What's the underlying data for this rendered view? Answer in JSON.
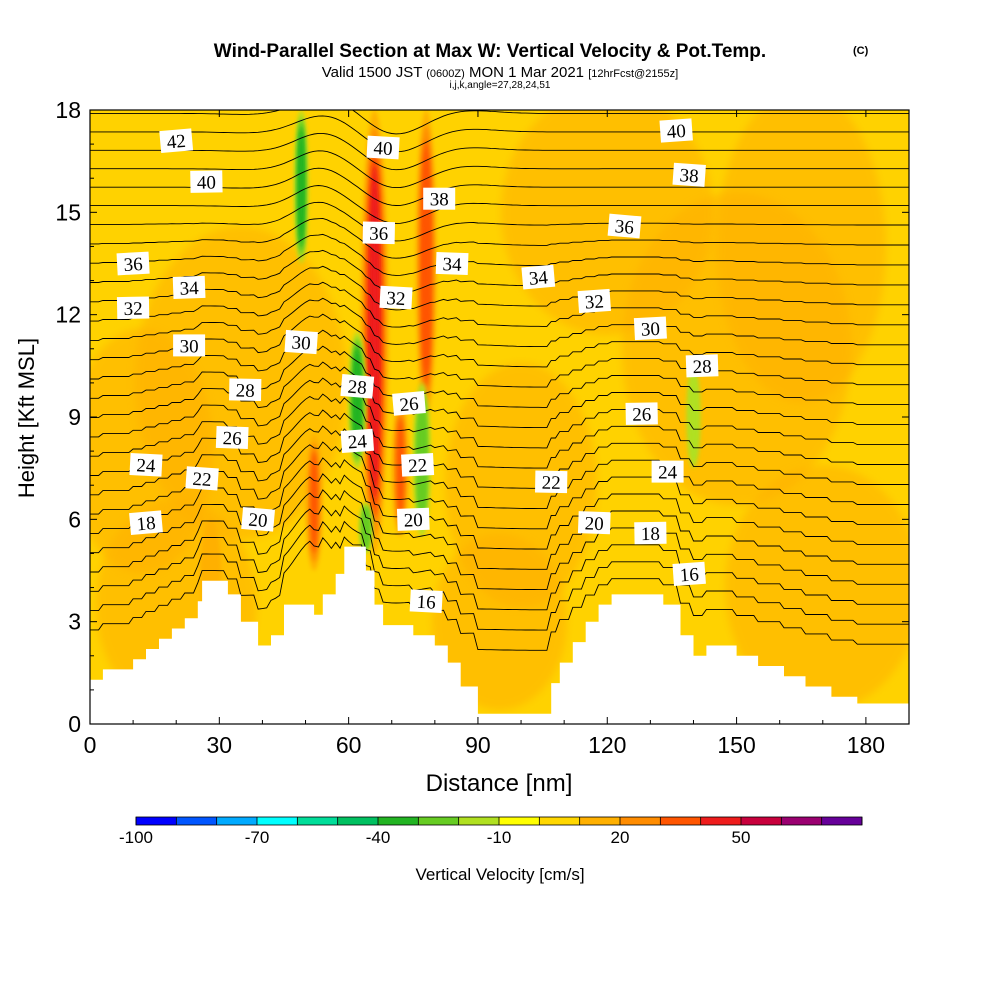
{
  "header": {
    "title": "Wind-Parallel Section at Max W: Vertical Velocity & Pot.Temp.",
    "copyright": "(C)",
    "valid_prefix": "Valid 1500 JST",
    "utc_time": "(0600Z)",
    "valid_date": "MON 1 Mar 2021",
    "forecast_tag": "[12hrFcst@2155z]",
    "indices": "i,j,k,angle=27,28,24,51"
  },
  "colors": {
    "bands": [
      "#0000ff",
      "#0055ff",
      "#00aaff",
      "#00ffff",
      "#00dd99",
      "#00c060",
      "#22b422",
      "#66cc22",
      "#b0e020",
      "#ffff00",
      "#ffd700",
      "#ffb000",
      "#ff8c00",
      "#ff5500",
      "#ee1c1c",
      "#c8003c",
      "#9a0070",
      "#660099"
    ],
    "field_background": "#ffd200",
    "field_warm": "#ffb000",
    "terrain": "#ffffff",
    "contour": "#000000"
  },
  "chart_data": {
    "type": "heatmap",
    "xlabel": "Distance [nm]",
    "ylabel": "Height [Kft MSL]",
    "xlim": [
      0,
      190
    ],
    "ylim": [
      0,
      18
    ],
    "xticks": [
      0,
      30,
      60,
      90,
      120,
      150,
      180
    ],
    "yticks": [
      0,
      3,
      6,
      9,
      12,
      15,
      18
    ],
    "colorbar": {
      "label": "Vertical Velocity [cm/s]",
      "range": [
        -100,
        80
      ],
      "step": 10,
      "tick_values": [
        -100,
        -70,
        -40,
        -10,
        20,
        50
      ],
      "tick_labels": [
        "-100",
        "-70",
        "-40",
        "-10",
        "20",
        "50"
      ]
    },
    "terrain": [
      [
        0,
        1.3
      ],
      [
        3,
        1.3
      ],
      [
        3,
        1.6
      ],
      [
        10,
        1.6
      ],
      [
        10,
        1.9
      ],
      [
        13,
        1.9
      ],
      [
        13,
        2.2
      ],
      [
        16,
        2.2
      ],
      [
        16,
        2.5
      ],
      [
        19,
        2.5
      ],
      [
        19,
        2.8
      ],
      [
        22,
        2.8
      ],
      [
        22,
        3.1
      ],
      [
        25,
        3.1
      ],
      [
        25,
        3.6
      ],
      [
        26,
        3.6
      ],
      [
        26,
        4.2
      ],
      [
        32,
        4.2
      ],
      [
        32,
        3.8
      ],
      [
        35,
        3.8
      ],
      [
        35,
        3.0
      ],
      [
        39,
        3.0
      ],
      [
        39,
        2.3
      ],
      [
        42,
        2.3
      ],
      [
        42,
        2.6
      ],
      [
        45,
        2.6
      ],
      [
        45,
        3.5
      ],
      [
        52,
        3.5
      ],
      [
        52,
        3.2
      ],
      [
        54,
        3.2
      ],
      [
        54,
        3.8
      ],
      [
        57,
        3.8
      ],
      [
        57,
        4.4
      ],
      [
        59,
        4.4
      ],
      [
        59,
        5.2
      ],
      [
        64,
        5.2
      ],
      [
        64,
        4.5
      ],
      [
        66,
        4.5
      ],
      [
        66,
        3.5
      ],
      [
        68,
        3.5
      ],
      [
        68,
        2.9
      ],
      [
        75,
        2.9
      ],
      [
        75,
        2.6
      ],
      [
        80,
        2.6
      ],
      [
        80,
        2.3
      ],
      [
        83,
        2.3
      ],
      [
        83,
        1.8
      ],
      [
        86,
        1.8
      ],
      [
        86,
        1.1
      ],
      [
        90,
        1.1
      ],
      [
        90,
        0.3
      ],
      [
        107,
        0.3
      ],
      [
        107,
        1.2
      ],
      [
        109,
        1.2
      ],
      [
        109,
        1.8
      ],
      [
        112,
        1.8
      ],
      [
        112,
        2.4
      ],
      [
        115,
        2.4
      ],
      [
        115,
        3.0
      ],
      [
        118,
        3.0
      ],
      [
        118,
        3.5
      ],
      [
        121,
        3.5
      ],
      [
        121,
        3.8
      ],
      [
        133,
        3.8
      ],
      [
        133,
        3.5
      ],
      [
        137,
        3.5
      ],
      [
        137,
        2.6
      ],
      [
        140,
        2.6
      ],
      [
        140,
        2.0
      ],
      [
        143,
        2.0
      ],
      [
        143,
        2.3
      ],
      [
        150,
        2.3
      ],
      [
        150,
        2.0
      ],
      [
        155,
        2.0
      ],
      [
        155,
        1.7
      ],
      [
        161,
        1.7
      ],
      [
        161,
        1.4
      ],
      [
        166,
        1.4
      ],
      [
        166,
        1.1
      ],
      [
        172,
        1.1
      ],
      [
        172,
        0.8
      ],
      [
        178,
        0.8
      ],
      [
        178,
        0.6
      ],
      [
        190,
        0.6
      ]
    ],
    "updraft_cells": [
      {
        "x": 66,
        "y_bottom": 5.0,
        "y_top": 18,
        "width": 4,
        "w": 45
      },
      {
        "x": 78,
        "y_bottom": 9.0,
        "y_top": 18,
        "width": 3,
        "w": 35
      },
      {
        "x": 52,
        "y_bottom": 4.5,
        "y_top": 8.5,
        "width": 2.5,
        "w": 30
      },
      {
        "x": 72,
        "y_bottom": 5.5,
        "y_top": 9.5,
        "width": 2.5,
        "w": 30
      },
      {
        "x": 28,
        "y_bottom": 3.0,
        "y_top": 6.0,
        "width": 3,
        "w": 15
      }
    ],
    "downdraft_cells": [
      {
        "x": 49,
        "y_bottom": 13.5,
        "y_top": 18,
        "width": 2,
        "w": -40
      },
      {
        "x": 62,
        "y_bottom": 7.5,
        "y_top": 11.5,
        "width": 2.5,
        "w": -35
      },
      {
        "x": 77,
        "y_bottom": 5.5,
        "y_top": 10,
        "width": 2.5,
        "w": -30
      },
      {
        "x": 64,
        "y_bottom": 5.0,
        "y_top": 6.5,
        "width": 2,
        "w": -30
      },
      {
        "x": 140,
        "y_bottom": 7.5,
        "y_top": 10.5,
        "width": 2,
        "w": -20
      }
    ],
    "isentrope_labels": [
      {
        "text": "42",
        "x": 20,
        "y": 17.1
      },
      {
        "text": "40",
        "x": 27,
        "y": 15.9
      },
      {
        "text": "40",
        "x": 68,
        "y": 16.9
      },
      {
        "text": "40",
        "x": 136,
        "y": 17.4
      },
      {
        "text": "38",
        "x": 81,
        "y": 15.4
      },
      {
        "text": "38",
        "x": 139,
        "y": 16.1
      },
      {
        "text": "36",
        "x": 10,
        "y": 13.5
      },
      {
        "text": "36",
        "x": 67,
        "y": 14.4
      },
      {
        "text": "36",
        "x": 124,
        "y": 14.6
      },
      {
        "text": "34",
        "x": 23,
        "y": 12.8
      },
      {
        "text": "34",
        "x": 84,
        "y": 13.5
      },
      {
        "text": "34",
        "x": 104,
        "y": 13.1
      },
      {
        "text": "32",
        "x": 10,
        "y": 12.2
      },
      {
        "text": "32",
        "x": 71,
        "y": 12.5
      },
      {
        "text": "32",
        "x": 117,
        "y": 12.4
      },
      {
        "text": "30",
        "x": 23,
        "y": 11.1
      },
      {
        "text": "30",
        "x": 49,
        "y": 11.2
      },
      {
        "text": "30",
        "x": 130,
        "y": 11.6
      },
      {
        "text": "28",
        "x": 36,
        "y": 9.8
      },
      {
        "text": "28",
        "x": 62,
        "y": 9.9
      },
      {
        "text": "28",
        "x": 142,
        "y": 10.5
      },
      {
        "text": "26",
        "x": 33,
        "y": 8.4
      },
      {
        "text": "26",
        "x": 74,
        "y": 9.4
      },
      {
        "text": "26",
        "x": 128,
        "y": 9.1
      },
      {
        "text": "24",
        "x": 13,
        "y": 7.6
      },
      {
        "text": "24",
        "x": 62,
        "y": 8.3
      },
      {
        "text": "24",
        "x": 134,
        "y": 7.4
      },
      {
        "text": "22",
        "x": 26,
        "y": 7.2
      },
      {
        "text": "22",
        "x": 76,
        "y": 7.6
      },
      {
        "text": "22",
        "x": 107,
        "y": 7.1
      },
      {
        "text": "20",
        "x": 39,
        "y": 6.0
      },
      {
        "text": "20",
        "x": 75,
        "y": 6.0
      },
      {
        "text": "20",
        "x": 117,
        "y": 5.9
      },
      {
        "text": "18",
        "x": 13,
        "y": 5.9
      },
      {
        "text": "18",
        "x": 130,
        "y": 5.6
      },
      {
        "text": "16",
        "x": 78,
        "y": 3.6
      },
      {
        "text": "16",
        "x": 139,
        "y": 4.4
      }
    ],
    "isentrope_levels": [
      16,
      17,
      18,
      19,
      20,
      21,
      22,
      23,
      24,
      25,
      26,
      27,
      28,
      29,
      30,
      31,
      32,
      33,
      34,
      35,
      36,
      37,
      38,
      39,
      40,
      41,
      42,
      43
    ]
  }
}
